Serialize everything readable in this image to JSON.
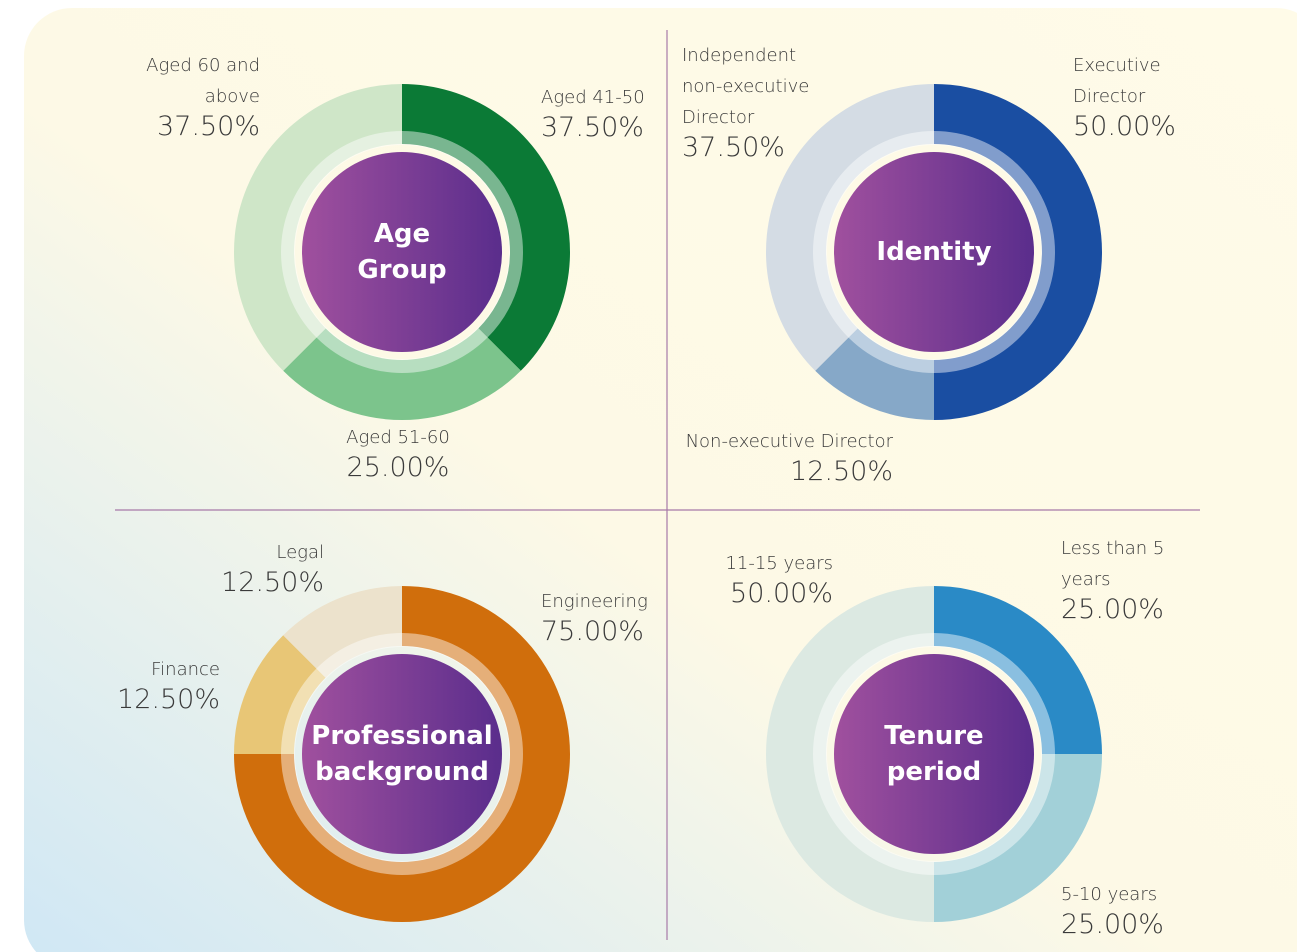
{
  "chart_data": [
    {
      "type": "pie",
      "title": "Age Group",
      "categories": [
        "Aged 41-50",
        "Aged 51-60",
        "Aged 60 and above"
      ],
      "values": [
        37.5,
        25,
        37.5
      ],
      "value_labels": [
        "37.50%",
        "25.00%",
        "37.50%"
      ],
      "colors": [
        "#0b7a36",
        "#7cc48c",
        "#cfe6c8"
      ]
    },
    {
      "type": "pie",
      "title": "Identity",
      "categories": [
        "Executive Director",
        "Non-executive Director",
        "Independent non-executive Director"
      ],
      "values": [
        50,
        12.5,
        37.5
      ],
      "value_labels": [
        "50.00%",
        "12.50%",
        "37.50%"
      ],
      "colors": [
        "#1a4ea2",
        "#86a8c8",
        "#d4dce4"
      ]
    },
    {
      "type": "pie",
      "title": "Professional background",
      "categories": [
        "Engineering",
        "Finance",
        "Legal"
      ],
      "values": [
        75,
        12.5,
        12.5
      ],
      "value_labels": [
        "75.00%",
        "12.50%",
        "12.50%"
      ],
      "colors": [
        "#d06e0c",
        "#e8c676",
        "#ece2cc"
      ]
    },
    {
      "type": "pie",
      "title": "Tenure period",
      "categories": [
        "Less than 5 years",
        "5-10 years",
        "11-15 years"
      ],
      "values": [
        25,
        25,
        50
      ],
      "value_labels": [
        "25.00%",
        "25.00%",
        "50.00%"
      ],
      "colors": [
        "#2a8ac6",
        "#a2d0d8",
        "#dce9e2"
      ]
    }
  ]
}
